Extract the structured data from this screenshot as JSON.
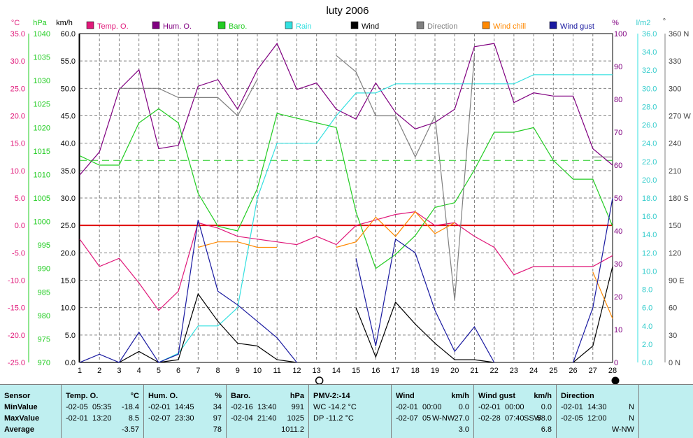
{
  "chart_data": {
    "type": "line",
    "title": "luty 2006",
    "units": {
      "temp": "°C",
      "baro": "hPa",
      "wind": "km/h",
      "hum": "%",
      "rain": "l/m2",
      "dir": "°"
    },
    "x": [
      1,
      2,
      3,
      4,
      5,
      6,
      7,
      8,
      9,
      10,
      11,
      12,
      13,
      14,
      15,
      16,
      17,
      18,
      19,
      20,
      21,
      22,
      23,
      24,
      25,
      26,
      27,
      28
    ],
    "axes": {
      "temp": {
        "min": -25,
        "max": 35,
        "ticks": [
          "35.0",
          "30.0",
          "25.0",
          "20.0",
          "15.0",
          "10.0",
          "5.0",
          "0.0",
          "-5.0",
          "-10.0",
          "-15.0",
          "-20.0",
          "-25.0"
        ]
      },
      "baro": {
        "min": 970,
        "max": 1040,
        "ticks": [
          "1040",
          "1035",
          "1030",
          "1025",
          "1020",
          "1015",
          "1010",
          "1005",
          "1000",
          "995",
          "990",
          "985",
          "980",
          "975",
          "970"
        ]
      },
      "wind": {
        "min": 0,
        "max": 60,
        "ticks": [
          "60.0",
          "55.0",
          "50.0",
          "45.0",
          "40.0",
          "35.0",
          "30.0",
          "25.0",
          "20.0",
          "15.0",
          "10.0",
          "5.0",
          "0.0"
        ]
      },
      "hum": {
        "min": 0,
        "max": 100,
        "ticks": [
          "100",
          "90",
          "80",
          "70",
          "60",
          "50",
          "40",
          "30",
          "20",
          "10",
          "0"
        ]
      },
      "rain": {
        "min": 0,
        "max": 36,
        "ticks": [
          "36.0",
          "34.0",
          "32.0",
          "30.0",
          "28.0",
          "26.0",
          "24.0",
          "22.0",
          "20.0",
          "18.0",
          "16.0",
          "14.0",
          "12.0",
          "10.0",
          "8.0",
          "6.0",
          "4.0",
          "2.0",
          "0.0"
        ]
      },
      "dir": {
        "min": 0,
        "max": 360,
        "ticks": [
          "360 N",
          "330",
          "300",
          "270 W",
          "240",
          "210",
          "180 S",
          "150",
          "120",
          "90 E",
          "60",
          "30",
          "0 N"
        ]
      }
    },
    "legend": [
      {
        "name": "Temp. O.",
        "color": "#e0197a"
      },
      {
        "name": "Hum. O.",
        "color": "#800080"
      },
      {
        "name": "Baro.",
        "color": "#22cc22"
      },
      {
        "name": "Rain",
        "color": "#33e0e0"
      },
      {
        "name": "Wind",
        "color": "#000000"
      },
      {
        "name": "Direction",
        "color": "#808080"
      },
      {
        "name": "Wind chill",
        "color": "#ff8800"
      },
      {
        "name": "Wind gust",
        "color": "#1a1aa0"
      }
    ],
    "series": [
      {
        "name": "Temp. O.",
        "axis": "temp",
        "color": "#e0197a",
        "values": [
          -2.5,
          -7.5,
          -6.0,
          -10.5,
          -15.5,
          -12.0,
          0.5,
          -0.5,
          -2.0,
          -2.5,
          -3.0,
          -3.5,
          -2.0,
          -3.5,
          0.0,
          1.0,
          2.0,
          2.5,
          0.0,
          0.5,
          -2.0,
          -4.0,
          -9.0,
          -7.5,
          -7.5,
          -7.5,
          -7.5,
          -5.5
        ]
      },
      {
        "name": "Hum. O.",
        "axis": "hum",
        "color": "#800080",
        "values": [
          57,
          64,
          83,
          89,
          65,
          66,
          84,
          86,
          77,
          89,
          97,
          83,
          85,
          77,
          74,
          85,
          76,
          71,
          73,
          77,
          96,
          97,
          79,
          82,
          81,
          81,
          65,
          60
        ]
      },
      {
        "name": "Baro.",
        "axis": "baro",
        "color": "#22cc22",
        "values": [
          1014,
          1012,
          1012,
          1021,
          1024,
          1021,
          1006,
          999,
          998,
          1007,
          1023,
          1022,
          1021,
          1020,
          1002,
          990,
          993,
          997,
          1003,
          1004,
          1011,
          1019,
          1019,
          1020,
          1013,
          1009,
          1009,
          999
        ]
      },
      {
        "name": "Rain",
        "axis": "rain",
        "color": "#33e0e0",
        "values": [
          null,
          null,
          null,
          null,
          0.0,
          1.0,
          4.0,
          4.0,
          6.0,
          18.0,
          24.0,
          24.0,
          24.0,
          27.0,
          29.5,
          29.5,
          30.5,
          30.5,
          30.5,
          30.5,
          30.5,
          30.5,
          30.5,
          31.5,
          31.5,
          31.5,
          31.5,
          31.5
        ]
      },
      {
        "name": "Wind",
        "axis": "wind",
        "color": "#000000",
        "values": [
          0.0,
          0.0,
          0.0,
          2.0,
          0.0,
          0.5,
          12.5,
          7.5,
          3.5,
          3.0,
          0.5,
          0.0,
          null,
          null,
          10.0,
          1.0,
          11.0,
          7.0,
          3.5,
          0.5,
          0.5,
          0.0,
          null,
          null,
          null,
          0.0,
          3.0,
          17.5
        ]
      },
      {
        "name": "Direction",
        "axis": "dir",
        "color": "#808080",
        "values": [
          null,
          null,
          300,
          300,
          300,
          290,
          290,
          290,
          270,
          310,
          null,
          null,
          null,
          336,
          318,
          270,
          270,
          225,
          270,
          68,
          336,
          null,
          null,
          null,
          null,
          null,
          225,
          225
        ]
      },
      {
        "name": "Wind chill",
        "axis": "temp",
        "color": "#ff8800",
        "values": [
          null,
          null,
          null,
          null,
          null,
          null,
          -4.0,
          -3.0,
          -3.0,
          -4.0,
          -4.0,
          null,
          null,
          -4.0,
          -3.0,
          1.5,
          -2.0,
          2.5,
          -1.5,
          0.5,
          null,
          null,
          null,
          null,
          null,
          null,
          -8.5,
          -17.0
        ]
      },
      {
        "name": "Wind gust",
        "axis": "wind",
        "color": "#1a1aa0",
        "values": [
          0.0,
          1.5,
          0.0,
          5.5,
          0.0,
          1.5,
          26.0,
          13.0,
          10.5,
          7.5,
          4.5,
          0.0,
          null,
          null,
          19.0,
          3.0,
          22.5,
          20.0,
          9.5,
          2.0,
          6.5,
          0.0,
          null,
          null,
          null,
          0.0,
          10.0,
          30.0
        ]
      }
    ],
    "reference_lines": [
      {
        "axis": "temp",
        "value": 0.0,
        "color": "#e00000",
        "style": "solid"
      },
      {
        "axis": "baro",
        "value": 1013,
        "color": "#22cc22",
        "style": "dashed"
      }
    ],
    "moon_phase_markers": [
      {
        "day": 13,
        "phase": "full"
      },
      {
        "day": 28,
        "phase": "new"
      }
    ],
    "grid": true
  },
  "table": {
    "sensor": {
      "header": "Sensor",
      "min": "MinValue",
      "max": "MaxValue",
      "avg": "Average"
    },
    "temp": {
      "header": "Temp. O.",
      "unit": "°C",
      "min_date": "-02-05",
      "min_time": "05:35",
      "min_val": "-18.4",
      "max_date": "-02-01",
      "max_time": "13:20",
      "max_val": "8.5",
      "avg": "-3.57"
    },
    "hum": {
      "header": "Hum. O.",
      "unit": "%",
      "min_date": "-02-01",
      "min_time": "14:45",
      "min_val": "34",
      "max_date": "-02-07",
      "max_time": "23:30",
      "max_val": "97",
      "avg": "78"
    },
    "baro": {
      "header": "Baro.",
      "unit": "hPa",
      "min_date": "-02-16",
      "min_time": "13:40",
      "min_val": "991",
      "max_date": "-02-04",
      "max_time": "21:40",
      "max_val": "1025",
      "avg": "1011.2"
    },
    "pmv": {
      "header": "PMV-2:-14",
      "wc": "WC -14.2 °C",
      "dp": "DP -11.2 °C"
    },
    "wind": {
      "header": "Wind",
      "unit": "km/h",
      "min_date": "-02-01",
      "min_time": "00:00",
      "min_val": "0.0",
      "max_date": "-02-07",
      "max_time": "05",
      "max_dir": "W-NW",
      "max_val": "27.0",
      "avg": "3.0"
    },
    "gust": {
      "header": "Wind gust",
      "unit": "km/h",
      "min_date": "-02-01",
      "min_time": "00:00",
      "min_val": "0.0",
      "max_date": "-02-28",
      "max_time": "07:40",
      "max_dir": "SSW",
      "max_val": "58.0",
      "avg": "6.8"
    },
    "dir": {
      "header": "Direction",
      "min_date": "-02-01",
      "min_time": "14:30",
      "min_val": "N",
      "max_date": "-02-05",
      "max_time": "12:00",
      "max_val": "N",
      "avg": "W-NW"
    }
  }
}
